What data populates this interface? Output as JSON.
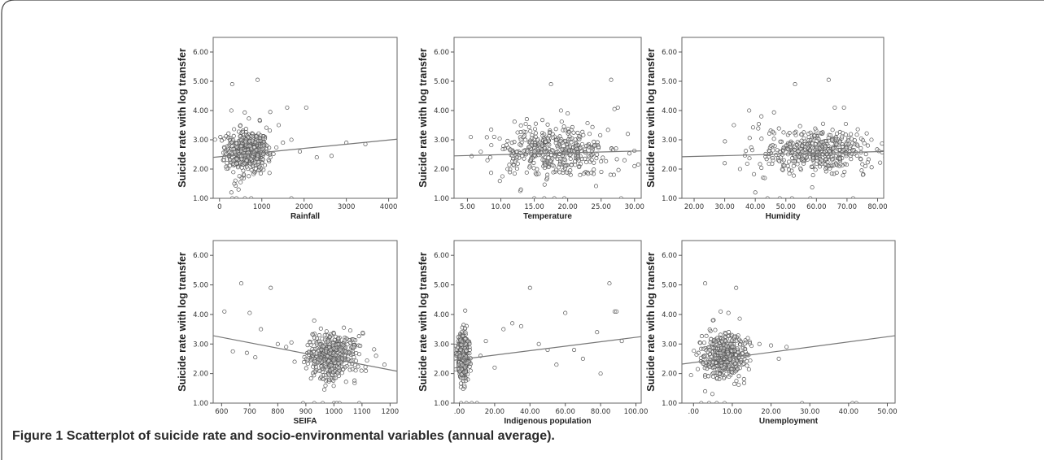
{
  "figure": {
    "label": "Figure 1",
    "caption": "Scatterplot of suicide rate and socio-environmental variables (annual average)."
  },
  "chart_data": [
    {
      "type": "scatter",
      "xlabel": "Rainfall",
      "ylabel": "Suicide rate with log transfer",
      "xlim": [
        -150,
        4200
      ],
      "ylim": [
        1.0,
        6.5
      ],
      "xticks": [
        0,
        1000,
        2000,
        3000,
        4000
      ],
      "xtick_labels": [
        "0",
        "1000",
        "2000",
        "3000",
        "4000"
      ],
      "yticks": [
        1.0,
        2.0,
        3.0,
        4.0,
        5.0,
        6.0
      ],
      "ytick_labels": [
        "1.00",
        "2.00",
        "3.00",
        "4.00",
        "5.00",
        "6.00"
      ],
      "fit_line": {
        "x": [
          -150,
          4200
        ],
        "y": [
          2.4,
          3.02
        ]
      },
      "cluster": {
        "center": [
          650,
          2.6
        ],
        "spread": [
          260,
          0.35
        ]
      },
      "points": [
        [
          300,
          4.9
        ],
        [
          900,
          5.05
        ],
        [
          280,
          4.0
        ],
        [
          1600,
          4.1
        ],
        [
          2050,
          4.1
        ],
        [
          1200,
          3.95
        ],
        [
          1400,
          3.5
        ],
        [
          3000,
          2.9
        ],
        [
          3450,
          2.85
        ],
        [
          2650,
          2.45
        ],
        [
          2300,
          2.4
        ],
        [
          1900,
          2.6
        ],
        [
          1700,
          3.0
        ],
        [
          1500,
          2.9
        ],
        [
          300,
          1.0
        ],
        [
          400,
          1.0
        ],
        [
          600,
          1.0
        ],
        [
          750,
          1.0
        ],
        [
          1700,
          1.0
        ],
        [
          280,
          1.2
        ],
        [
          350,
          1.5
        ],
        [
          450,
          1.3
        ]
      ]
    },
    {
      "type": "scatter",
      "xlabel": "Temperature",
      "ylabel": "Suicide rate with log transfer",
      "xlim": [
        3.0,
        31.0
      ],
      "ylim": [
        1.0,
        6.5
      ],
      "xticks": [
        5,
        10,
        15,
        20,
        25,
        30
      ],
      "xtick_labels": [
        "5.00",
        "10.00",
        "15.00",
        "20.00",
        "25.00",
        "30.00"
      ],
      "yticks": [
        1.0,
        2.0,
        3.0,
        4.0,
        5.0,
        6.0
      ],
      "ytick_labels": [
        "1.00",
        "2.00",
        "3.00",
        "4.00",
        "5.00",
        "6.00"
      ],
      "fit_line": {
        "x": [
          3.0,
          31.0
        ],
        "y": [
          2.45,
          2.62
        ]
      },
      "cluster": {
        "center": [
          18,
          2.6
        ],
        "spread": [
          4.5,
          0.4
        ]
      },
      "points": [
        [
          17.5,
          4.9
        ],
        [
          26.5,
          5.05
        ],
        [
          27,
          4.05
        ],
        [
          27.5,
          4.1
        ],
        [
          19,
          4.0
        ],
        [
          20,
          3.9
        ],
        [
          9,
          3.1
        ],
        [
          11,
          2.0
        ],
        [
          13,
          1.3
        ],
        [
          15,
          1.0
        ],
        [
          16.5,
          1.0
        ],
        [
          18,
          1.0
        ],
        [
          19.5,
          1.0
        ],
        [
          28,
          1.0
        ],
        [
          28.5,
          2.3
        ],
        [
          30,
          2.1
        ],
        [
          29,
          3.2
        ],
        [
          8,
          2.3
        ]
      ]
    },
    {
      "type": "scatter",
      "xlabel": "Humidity",
      "ylabel": "Suicide rate with log transfer",
      "xlim": [
        16.0,
        82.0
      ],
      "ylim": [
        1.0,
        6.5
      ],
      "xticks": [
        20,
        30,
        40,
        50,
        60,
        70,
        80
      ],
      "xtick_labels": [
        "20.00",
        "30.00",
        "40.00",
        "50.00",
        "60.00",
        "70.00",
        "80.00"
      ],
      "yticks": [
        1.0,
        2.0,
        3.0,
        4.0,
        5.0,
        6.0
      ],
      "ytick_labels": [
        "1.00",
        "2.00",
        "3.00",
        "4.00",
        "5.00",
        "6.00"
      ],
      "fit_line": {
        "x": [
          16.0,
          82.0
        ],
        "y": [
          2.42,
          2.6
        ]
      },
      "cluster": {
        "center": [
          60,
          2.6
        ],
        "spread": [
          9,
          0.38
        ]
      },
      "points": [
        [
          53,
          4.9
        ],
        [
          64,
          5.05
        ],
        [
          66,
          4.1
        ],
        [
          69,
          4.1
        ],
        [
          38,
          4.0
        ],
        [
          42,
          3.8
        ],
        [
          33,
          3.5
        ],
        [
          30,
          2.2
        ],
        [
          35,
          2.0
        ],
        [
          40,
          1.2
        ],
        [
          44,
          1.0
        ],
        [
          48,
          1.0
        ],
        [
          52,
          1.0
        ],
        [
          58,
          1.0
        ],
        [
          72,
          1.0
        ],
        [
          76,
          2.1
        ],
        [
          78,
          3.0
        ]
      ]
    },
    {
      "type": "scatter",
      "xlabel": "SEIFA",
      "ylabel": "Suicide rate with log transfer",
      "xlim": [
        570,
        1225
      ],
      "ylim": [
        1.0,
        6.5
      ],
      "xticks": [
        600,
        700,
        800,
        900,
        1000,
        1100,
        1200
      ],
      "xtick_labels": [
        "600",
        "700",
        "800",
        "900",
        "1000",
        "1100",
        "1200"
      ],
      "yticks": [
        1.0,
        2.0,
        3.0,
        4.0,
        5.0,
        6.0
      ],
      "ytick_labels": [
        "1.00",
        "2.00",
        "3.00",
        "4.00",
        "5.00",
        "6.00"
      ],
      "fit_line": {
        "x": [
          570,
          1225
        ],
        "y": [
          3.28,
          2.08
        ]
      },
      "cluster": {
        "center": [
          990,
          2.6
        ],
        "spread": [
          45,
          0.38
        ]
      },
      "points": [
        [
          670,
          5.05
        ],
        [
          775,
          4.9
        ],
        [
          610,
          4.1
        ],
        [
          700,
          4.05
        ],
        [
          740,
          3.5
        ],
        [
          640,
          2.75
        ],
        [
          690,
          2.7
        ],
        [
          720,
          2.55
        ],
        [
          800,
          3.0
        ],
        [
          830,
          2.9
        ],
        [
          860,
          2.4
        ],
        [
          890,
          1.0
        ],
        [
          930,
          1.0
        ],
        [
          960,
          1.0
        ],
        [
          1000,
          1.0
        ],
        [
          1010,
          1.0
        ],
        [
          1020,
          1.0
        ],
        [
          1090,
          1.0
        ],
        [
          1150,
          2.6
        ],
        [
          1180,
          2.3
        ]
      ]
    },
    {
      "type": "scatter",
      "xlabel": "Indigenous population",
      "ylabel": "Suicide rate with log transfer",
      "xlim": [
        -3.0,
        103.0
      ],
      "ylim": [
        1.0,
        6.5
      ],
      "xticks": [
        0,
        20,
        40,
        60,
        80,
        100
      ],
      "xtick_labels": [
        ".00",
        "20.00",
        "40.00",
        "60.00",
        "80.00",
        "100.00"
      ],
      "yticks": [
        1.0,
        2.0,
        3.0,
        4.0,
        5.0,
        6.0
      ],
      "ytick_labels": [
        "1.00",
        "2.00",
        "3.00",
        "4.00",
        "5.00",
        "6.00"
      ],
      "fit_line": {
        "x": [
          -3.0,
          103.0
        ],
        "y": [
          2.45,
          3.25
        ]
      },
      "cluster": {
        "center": [
          2,
          2.6
        ],
        "spread": [
          1.5,
          0.4
        ]
      },
      "points": [
        [
          40,
          4.9
        ],
        [
          85,
          5.05
        ],
        [
          88,
          4.1
        ],
        [
          89,
          4.1
        ],
        [
          60,
          4.05
        ],
        [
          30,
          3.7
        ],
        [
          25,
          3.5
        ],
        [
          35,
          3.6
        ],
        [
          45,
          3.0
        ],
        [
          50,
          2.8
        ],
        [
          55,
          2.3
        ],
        [
          65,
          2.8
        ],
        [
          70,
          2.5
        ],
        [
          78,
          3.4
        ],
        [
          80,
          2.0
        ],
        [
          92,
          3.1
        ],
        [
          15,
          3.1
        ],
        [
          20,
          2.2
        ],
        [
          12,
          2.6
        ],
        [
          10,
          1.0
        ],
        [
          4,
          1.0
        ],
        [
          7,
          1.0
        ],
        [
          1,
          1.0
        ]
      ]
    },
    {
      "type": "scatter",
      "xlabel": "Unemployment",
      "ylabel": "Suicide rate with log transfer",
      "xlim": [
        -3.0,
        52.0
      ],
      "ylim": [
        1.0,
        6.5
      ],
      "xticks": [
        0,
        10,
        20,
        30,
        40,
        50
      ],
      "xtick_labels": [
        ".00",
        "10.00",
        "20.00",
        "30.00",
        "40.00",
        "50.00"
      ],
      "yticks": [
        1.0,
        2.0,
        3.0,
        4.0,
        5.0,
        6.0
      ],
      "ytick_labels": [
        "1.00",
        "2.00",
        "3.00",
        "4.00",
        "5.00",
        "6.00"
      ],
      "fit_line": {
        "x": [
          -3.0,
          52.0
        ],
        "y": [
          2.32,
          3.28
        ]
      },
      "cluster": {
        "center": [
          8,
          2.6
        ],
        "spread": [
          2.8,
          0.38
        ]
      },
      "points": [
        [
          3,
          5.05
        ],
        [
          11,
          4.9
        ],
        [
          7,
          4.1
        ],
        [
          9,
          4.05
        ],
        [
          5,
          3.8
        ],
        [
          14,
          3.2
        ],
        [
          17,
          3.0
        ],
        [
          20,
          2.95
        ],
        [
          24,
          2.9
        ],
        [
          22,
          2.5
        ],
        [
          2,
          1.0
        ],
        [
          4,
          1.0
        ],
        [
          6,
          1.0
        ],
        [
          8,
          1.0
        ],
        [
          28,
          1.0
        ],
        [
          41,
          1.0
        ],
        [
          42,
          1.0
        ],
        [
          3,
          1.4
        ]
      ]
    }
  ]
}
